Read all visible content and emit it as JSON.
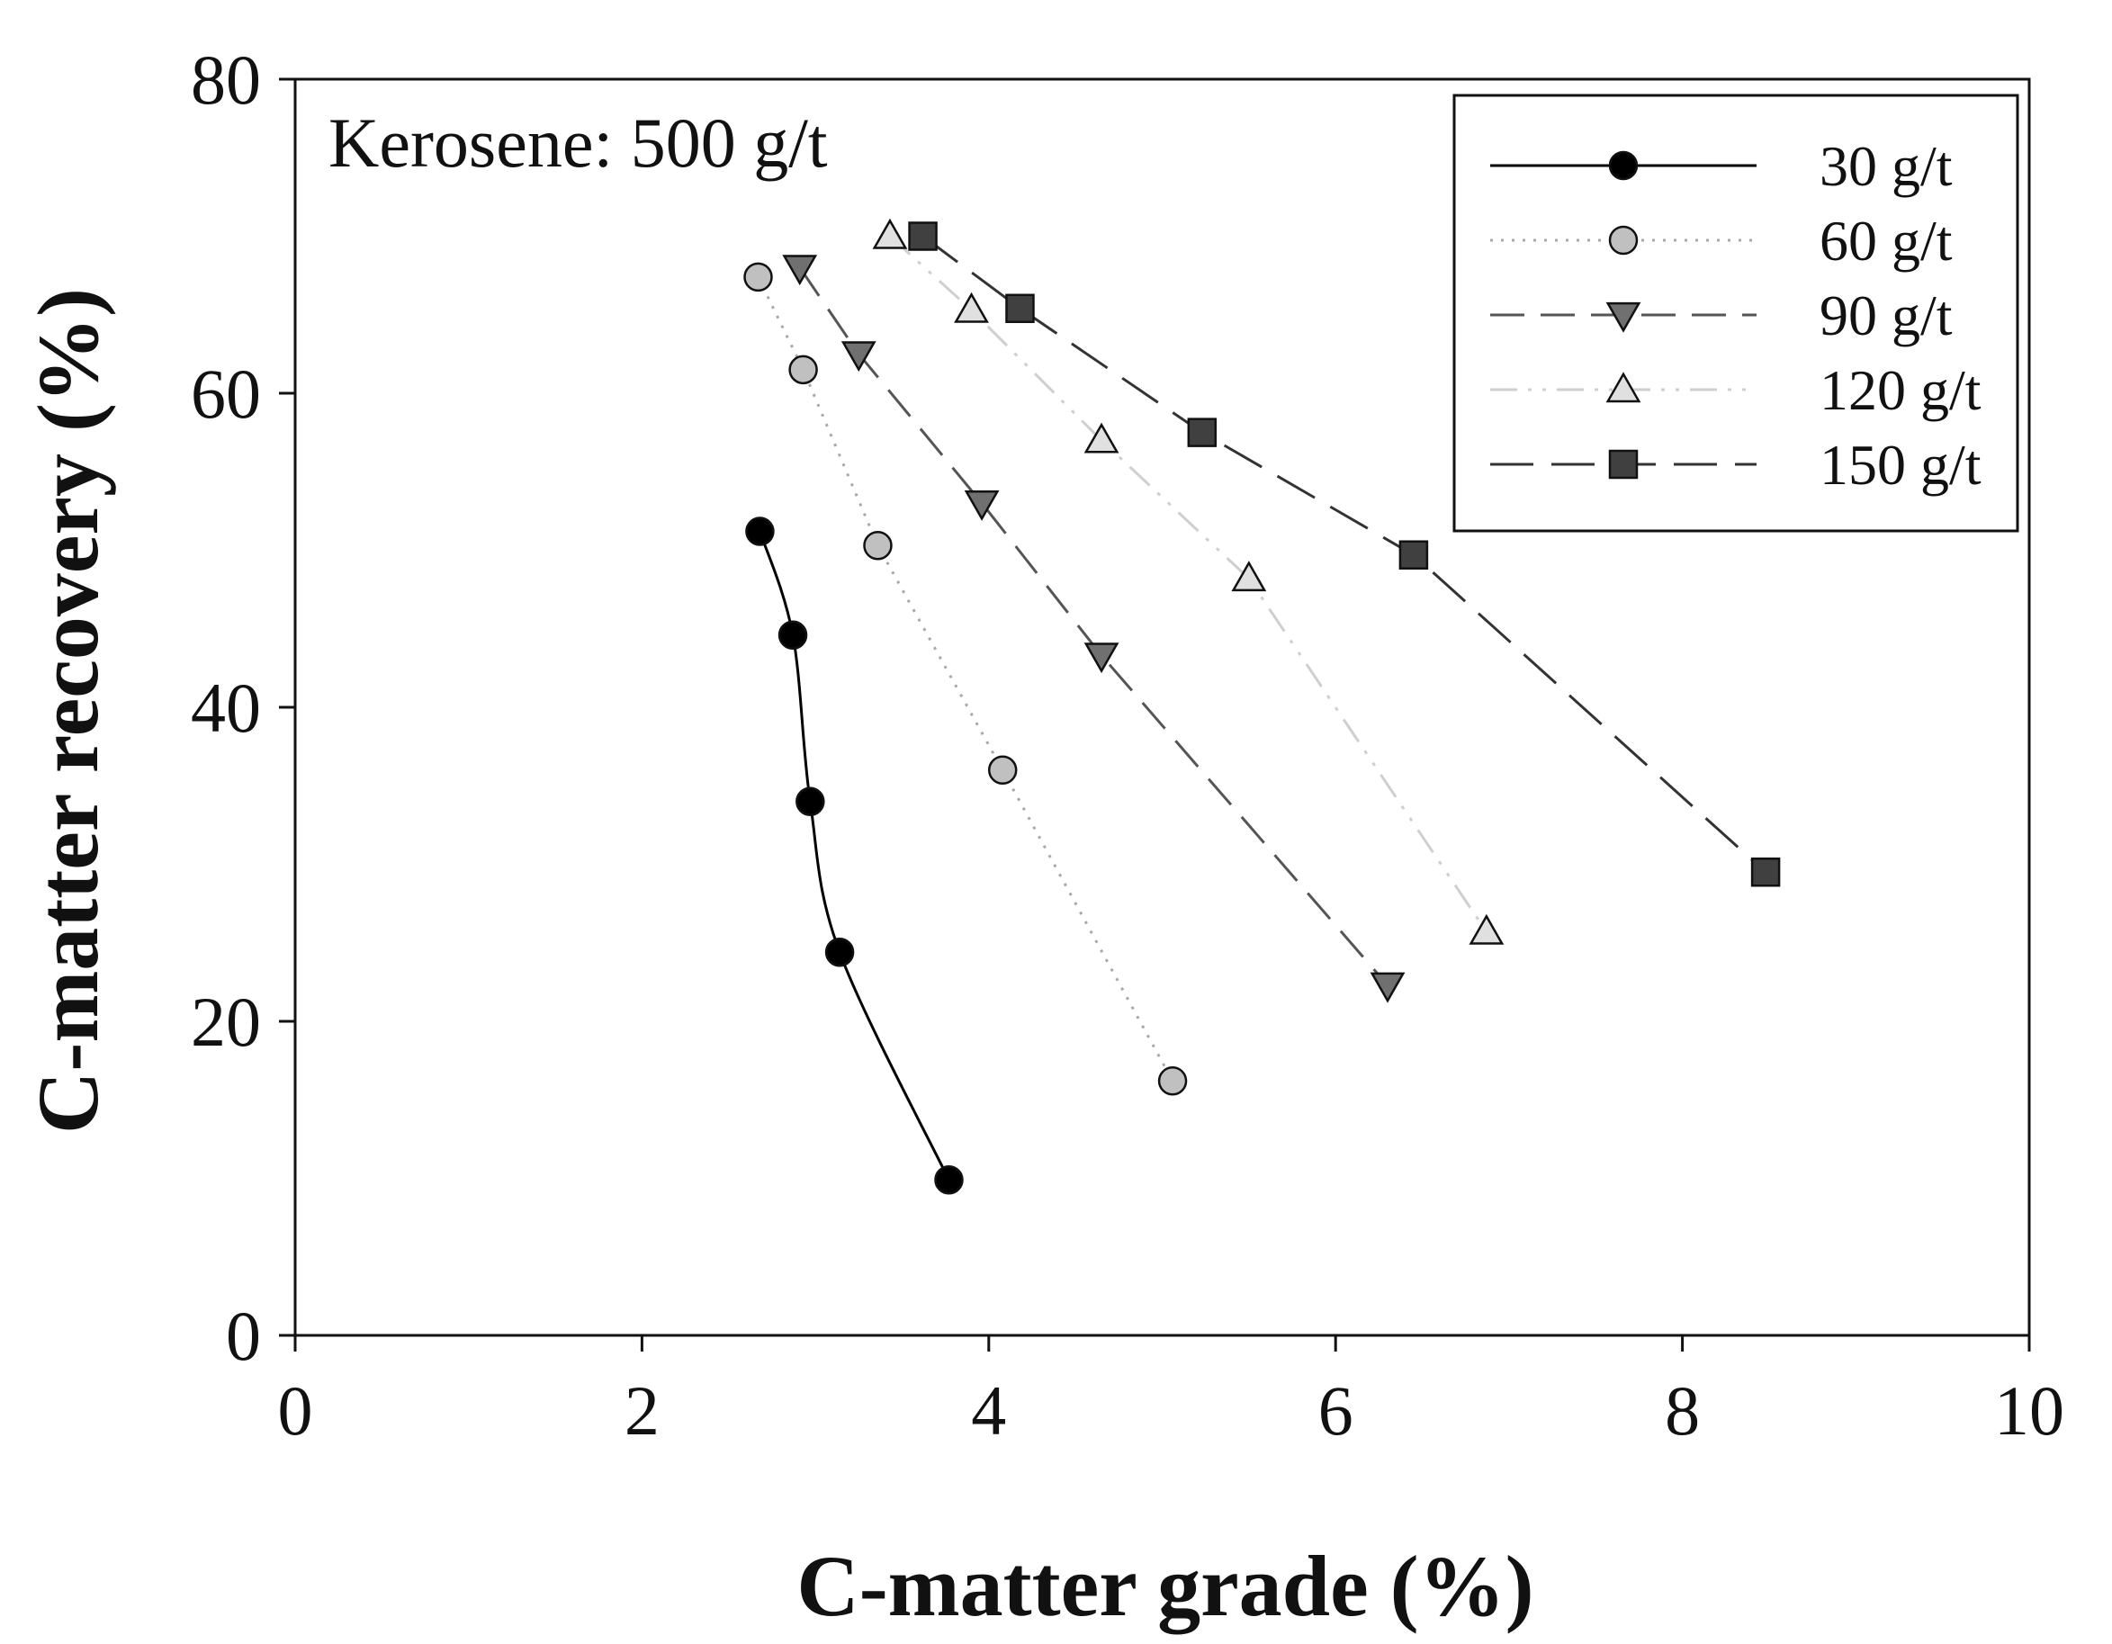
{
  "chart_data": {
    "type": "line",
    "title": "",
    "xlabel": "C-matter grade (%)",
    "ylabel": "C-matter recovery (%)",
    "xlim": [
      0,
      10
    ],
    "ylim": [
      0,
      80
    ],
    "xticks": [
      0,
      2,
      4,
      6,
      8,
      10
    ],
    "yticks": [
      0,
      20,
      40,
      60,
      80
    ],
    "xtick_labels": [
      "0",
      "2",
      "4",
      "6",
      "8",
      "10"
    ],
    "ytick_labels": [
      "0",
      "20",
      "40",
      "60",
      "80"
    ],
    "grid": false,
    "legend_position": "top-right",
    "annotation": "Kerosene: 500 g/t",
    "series": [
      {
        "name": "30 g/t",
        "marker": "circle",
        "line_style": "solid",
        "marker_fill": "#000000",
        "line_color": "#000000",
        "smooth": true,
        "points": [
          [
            2.68,
            51.2
          ],
          [
            2.87,
            44.6
          ],
          [
            2.97,
            34.0
          ],
          [
            3.14,
            24.4
          ],
          [
            3.77,
            9.9
          ]
        ]
      },
      {
        "name": "60 g/t",
        "marker": "circle",
        "line_style": "dotted",
        "marker_fill": "#c0c0c0",
        "line_color": "#a8a8a8",
        "smooth": false,
        "points": [
          [
            2.67,
            67.4
          ],
          [
            2.93,
            61.5
          ],
          [
            3.36,
            50.3
          ],
          [
            4.08,
            36.0
          ],
          [
            5.06,
            16.2
          ]
        ]
      },
      {
        "name": "90 g/t",
        "marker": "triangle-down",
        "line_style": "dashed",
        "marker_fill": "#707070",
        "line_color": "#555555",
        "smooth": false,
        "points": [
          [
            2.91,
            68.0
          ],
          [
            3.25,
            62.5
          ],
          [
            3.96,
            53.0
          ],
          [
            4.65,
            43.3
          ],
          [
            6.3,
            22.3
          ]
        ]
      },
      {
        "name": "120 g/t",
        "marker": "triangle-up",
        "line_style": "dash-dot-dot",
        "marker_fill": "#e0e0e0",
        "line_color": "#cfcfcf",
        "smooth": false,
        "points": [
          [
            3.43,
            70.0
          ],
          [
            3.9,
            65.3
          ],
          [
            4.65,
            57.0
          ],
          [
            5.5,
            48.2
          ],
          [
            6.87,
            25.7
          ]
        ]
      },
      {
        "name": "150 g/t",
        "marker": "square",
        "line_style": "long-dash",
        "marker_fill": "#404040",
        "line_color": "#333333",
        "smooth": false,
        "points": [
          [
            3.62,
            70.0
          ],
          [
            4.18,
            65.4
          ],
          [
            5.23,
            57.5
          ],
          [
            6.45,
            49.7
          ],
          [
            8.48,
            29.5
          ]
        ]
      }
    ]
  }
}
